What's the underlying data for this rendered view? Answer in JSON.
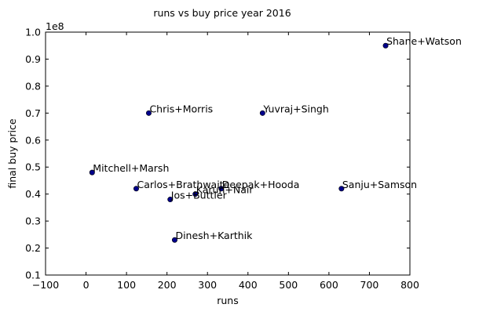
{
  "chart_data": {
    "type": "scatter",
    "title": "runs vs buy price year 2016",
    "xlabel": "runs",
    "ylabel": "final buy price",
    "y_offset_label": "1e8",
    "xlim": [
      -100,
      800
    ],
    "ylim": [
      0.1,
      1.0
    ],
    "xticks": [
      -100,
      0,
      100,
      200,
      300,
      400,
      500,
      600,
      700,
      800
    ],
    "yticks": [
      0.1,
      0.2,
      0.3,
      0.4,
      0.5,
      0.6,
      0.7,
      0.8,
      0.9,
      1.0
    ],
    "xtick_labels": [
      "−100",
      "0",
      "100",
      "200",
      "300",
      "400",
      "500",
      "600",
      "700",
      "800"
    ],
    "ytick_labels": [
      "0.1",
      "0.2",
      "0.3",
      "0.4",
      "0.5",
      "0.6",
      "0.7",
      "0.8",
      "0.9",
      "1.0"
    ],
    "grid": false,
    "marker_color": "#00008b",
    "points": [
      {
        "label": "Shane+Watson",
        "x": 740,
        "y": 0.95
      },
      {
        "label": "Chris+Morris",
        "x": 155,
        "y": 0.7
      },
      {
        "label": "Yuvraj+Singh",
        "x": 436,
        "y": 0.7
      },
      {
        "label": "Mitchell+Marsh",
        "x": 15,
        "y": 0.48
      },
      {
        "label": "Carlos+Brathwaite",
        "x": 124,
        "y": 0.42
      },
      {
        "label": "Deepak+Hooda",
        "x": 334,
        "y": 0.42
      },
      {
        "label": "Sanju+Samson",
        "x": 631,
        "y": 0.42
      },
      {
        "label": "Karun+Nair",
        "x": 270,
        "y": 0.4
      },
      {
        "label": "Jos+Buttler",
        "x": 208,
        "y": 0.38
      },
      {
        "label": "Dinesh+Karthik",
        "x": 219,
        "y": 0.23
      }
    ]
  }
}
